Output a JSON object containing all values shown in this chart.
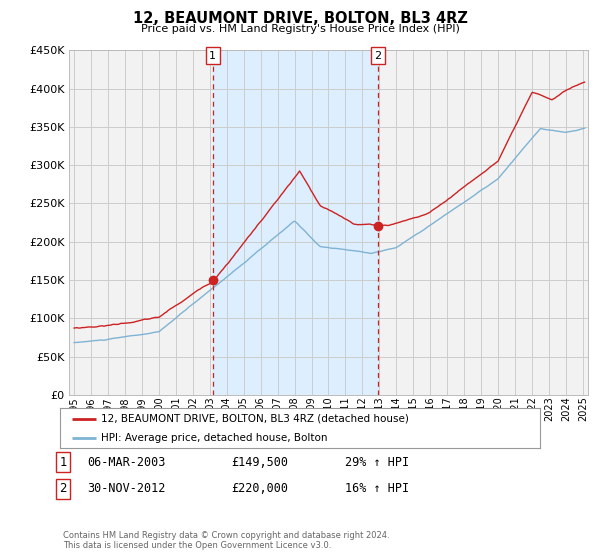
{
  "title": "12, BEAUMONT DRIVE, BOLTON, BL3 4RZ",
  "subtitle": "Price paid vs. HM Land Registry's House Price Index (HPI)",
  "ylim": [
    0,
    450000
  ],
  "yticks": [
    0,
    50000,
    100000,
    150000,
    200000,
    250000,
    300000,
    350000,
    400000,
    450000
  ],
  "xlim_start": 1994.7,
  "xlim_end": 2025.3,
  "background_color": "#ffffff",
  "plot_bg_color": "#f2f2f2",
  "grid_color": "#cccccc",
  "hpi_color": "#7fb3d3",
  "price_color": "#cc2222",
  "shade_color": "#ddeeff",
  "purchase1_date": 2003.18,
  "purchase1_price": 149500,
  "purchase2_date": 2012.92,
  "purchase2_price": 220000,
  "legend_label_price": "12, BEAUMONT DRIVE, BOLTON, BL3 4RZ (detached house)",
  "legend_label_hpi": "HPI: Average price, detached house, Bolton",
  "table_row1_label": "1",
  "table_row1_date": "06-MAR-2003",
  "table_row1_price": "£149,500",
  "table_row1_hpi": "29% ↑ HPI",
  "table_row2_label": "2",
  "table_row2_date": "30-NOV-2012",
  "table_row2_price": "£220,000",
  "table_row2_hpi": "16% ↑ HPI",
  "footer": "Contains HM Land Registry data © Crown copyright and database right 2024.\nThis data is licensed under the Open Government Licence v3.0."
}
